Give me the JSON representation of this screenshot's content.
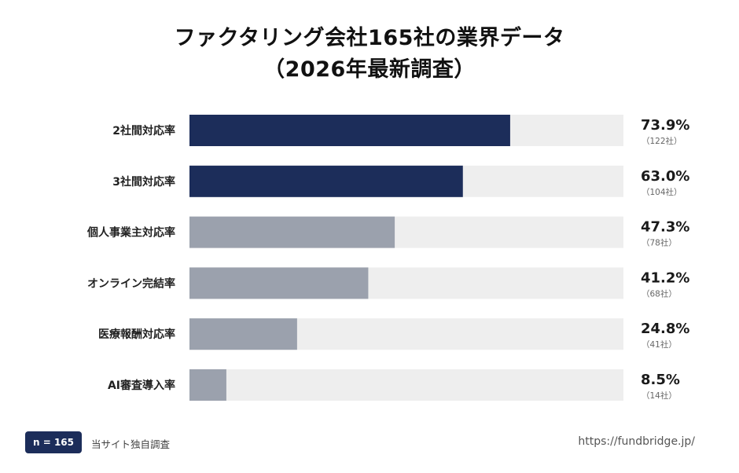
{
  "chart_data": {
    "type": "bar",
    "orientation": "horizontal",
    "title_line1": "ファクタリング会社165社の業界データ",
    "title_line2": "（2026年最新調査）",
    "categories": [
      "2社間対応率",
      "3社間対応率",
      "個人事業主対応率",
      "オンライン完結率",
      "医療報酬対応率",
      "AI審査導入率"
    ],
    "values": [
      73.9,
      63.0,
      47.3,
      41.2,
      24.8,
      8.5
    ],
    "value_labels": [
      "73.9%",
      "63.0%",
      "47.3%",
      "41.2%",
      "24.8%",
      "8.5%"
    ],
    "count_labels": [
      "（122社）",
      "（104社）",
      "（78社）",
      "（68社）",
      "（41社）",
      "（14社）"
    ],
    "highlighted": [
      true,
      true,
      false,
      false,
      false,
      false
    ],
    "xlim": [
      0,
      100
    ],
    "colors": {
      "highlight": "#1c2d5a",
      "normal": "#9ba1ad",
      "track": "#eeeeee"
    }
  },
  "footer": {
    "sample_badge": "n = 165",
    "source": "当サイト独自調査",
    "url": "https://fundbridge.jp/"
  }
}
